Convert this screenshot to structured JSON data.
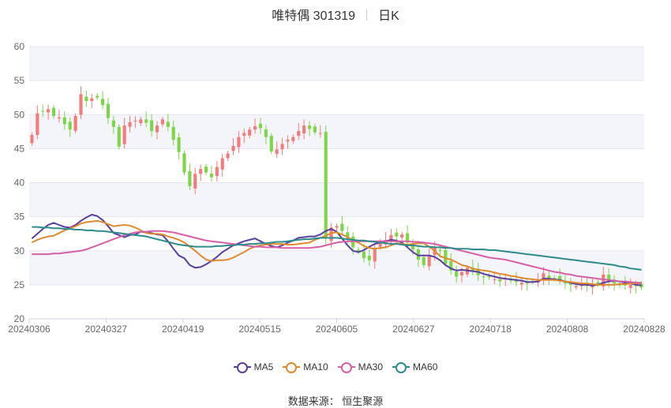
{
  "title": {
    "name": "唯特偶 301319",
    "period": "日K"
  },
  "source": "数据来源： 恒生聚源",
  "colors": {
    "up": "#f47b7b",
    "down": "#7cd646",
    "grid_band": "#f4f5fa",
    "grid_line": "#e4e7ef"
  },
  "chart_data": {
    "type": "candlestick",
    "ylim": [
      20,
      60
    ],
    "yticks": [
      20,
      25,
      30,
      35,
      40,
      45,
      50,
      55,
      60
    ],
    "xtick_labels": [
      "20240306",
      "20240327",
      "20240419",
      "20240515",
      "20240605",
      "20240627",
      "20240718",
      "20240808",
      "20240828"
    ],
    "xtick_index": [
      0,
      14,
      28,
      42,
      56,
      70,
      84,
      98,
      112
    ],
    "n_points": 113,
    "close": [
      47.0,
      50.2,
      50.5,
      50.8,
      49.8,
      49.6,
      48.6,
      47.8,
      49.8,
      53.0,
      52.0,
      52.4,
      52.5,
      51.4,
      49.5,
      48.2,
      45.3,
      48.4,
      48.9,
      49.1,
      49.3,
      48.8,
      47.6,
      48.4,
      49.3,
      48.2,
      46.3,
      44.5,
      41.5,
      39.5,
      41.3,
      42.0,
      41.5,
      40.8,
      42.3,
      43.6,
      44.3,
      45.4,
      46.7,
      47.3,
      47.8,
      48.3,
      48.0,
      46.7,
      44.6,
      44.9,
      45.7,
      46.3,
      46.7,
      47.6,
      48.4,
      47.9,
      47.4,
      47.3,
      31.8,
      33.4,
      33.6,
      32.9,
      31.9,
      30.5,
      29.9,
      28.9,
      28.6,
      30.4,
      31.3,
      31.6,
      32.3,
      32.1,
      32.4,
      31.2,
      30.2,
      28.7,
      27.9,
      29.2,
      30.5,
      30.1,
      28.1,
      27.1,
      26.2,
      26.9,
      27.5,
      27.0,
      26.4,
      26.1,
      26.1,
      25.8,
      25.5,
      25.9,
      25.6,
      25.4,
      25.3,
      25.2,
      25.5,
      25.6,
      26.7,
      26.0,
      25.9,
      25.7,
      25.2,
      25.0,
      24.8,
      24.9,
      24.8,
      25.2,
      25.1,
      26.5,
      25.4,
      25.2,
      25.0,
      24.9,
      25.0,
      24.8,
      24.6
    ],
    "series": [
      {
        "name": "MA5",
        "color": "#5b3f9e",
        "values": [
          31.8,
          32.5,
          33.2,
          33.8,
          34.1,
          33.8,
          33.5,
          33.4,
          33.8,
          34.4,
          34.9,
          35.3,
          35.1,
          34.5,
          33.6,
          32.6,
          32.3,
          32.0,
          32.3,
          32.4,
          32.8,
          32.7,
          32.6,
          32.4,
          32.3,
          31.4,
          30.3,
          29.3,
          28.9,
          27.9,
          27.5,
          27.6,
          28.0,
          28.5,
          29.1,
          29.8,
          30.3,
          30.8,
          31.1,
          31.4,
          31.6,
          31.8,
          31.4,
          31.0,
          30.7,
          30.5,
          30.8,
          31.2,
          31.5,
          31.9,
          32.0,
          32.1,
          32.1,
          32.4,
          32.9,
          33.2,
          32.8,
          31.8,
          30.8,
          30.0,
          29.8,
          30.1,
          30.6,
          31.0,
          31.2,
          31.4,
          31.6,
          31.5,
          31.2,
          30.5,
          29.8,
          29.3,
          29.3,
          29.3,
          29.1,
          28.6,
          27.9,
          27.4,
          27.1,
          27.2,
          27.1,
          27.0,
          26.9,
          26.6,
          26.4,
          26.2,
          26.0,
          25.9,
          25.8,
          25.7,
          25.6,
          25.4,
          25.4,
          25.5,
          25.9,
          25.9,
          25.8,
          25.7,
          25.5,
          25.3,
          25.1,
          25.0,
          25.0,
          24.9,
          25.0,
          25.3,
          25.5,
          25.6,
          25.5,
          25.3,
          25.2,
          25.0,
          24.9
        ]
      },
      {
        "name": "MA10",
        "color": "#e08a30",
        "values": [
          31.2,
          31.6,
          31.9,
          32.1,
          32.2,
          32.6,
          33.0,
          33.3,
          33.6,
          34.0,
          34.2,
          34.3,
          34.4,
          34.2,
          33.9,
          33.6,
          33.7,
          33.8,
          33.7,
          33.4,
          33.0,
          32.6,
          32.5,
          32.5,
          32.4,
          32.1,
          31.9,
          31.6,
          31.2,
          30.6,
          30.0,
          29.3,
          28.7,
          28.5,
          28.6,
          28.6,
          28.7,
          29.0,
          29.4,
          29.8,
          30.3,
          30.6,
          30.8,
          30.9,
          31.0,
          31.0,
          31.0,
          30.9,
          30.9,
          31.0,
          31.1,
          31.2,
          31.6,
          31.9,
          32.2,
          32.6,
          32.7,
          32.4,
          32.0,
          31.5,
          31.2,
          30.7,
          30.4,
          30.3,
          30.4,
          30.5,
          30.8,
          31.1,
          31.0,
          30.9,
          31.0,
          31.1,
          31.1,
          30.6,
          30.0,
          29.2,
          28.9,
          28.7,
          28.3,
          27.9,
          27.7,
          27.4,
          27.2,
          27.1,
          27.0,
          26.8,
          26.6,
          26.5,
          26.3,
          26.2,
          26.0,
          25.9,
          25.8,
          25.7,
          25.7,
          25.7,
          25.7,
          25.6,
          25.5,
          25.4,
          25.3,
          25.2,
          25.2,
          25.1,
          25.0,
          25.0,
          25.0,
          25.0,
          25.1,
          25.1,
          25.2,
          25.2,
          25.2
        ]
      },
      {
        "name": "MA30",
        "color": "#d65fa8",
        "values": [
          29.5,
          29.5,
          29.5,
          29.5,
          29.6,
          29.6,
          29.7,
          29.8,
          29.9,
          30.0,
          30.2,
          30.5,
          30.8,
          31.1,
          31.4,
          31.7,
          32.0,
          32.3,
          32.5,
          32.7,
          32.8,
          32.8,
          32.9,
          32.9,
          32.9,
          32.8,
          32.7,
          32.5,
          32.3,
          32.1,
          31.9,
          31.7,
          31.5,
          31.4,
          31.3,
          31.2,
          31.1,
          31.0,
          30.9,
          30.8,
          30.7,
          30.6,
          30.6,
          30.5,
          30.5,
          30.5,
          30.4,
          30.4,
          30.4,
          30.4,
          30.4,
          30.4,
          30.5,
          30.6,
          30.8,
          31.0,
          31.2,
          31.3,
          31.4,
          31.4,
          31.4,
          31.4,
          31.4,
          31.4,
          31.4,
          31.4,
          31.4,
          31.4,
          31.4,
          31.4,
          31.3,
          31.3,
          31.2,
          31.1,
          31.0,
          30.8,
          30.6,
          30.4,
          30.2,
          30.0,
          29.8,
          29.6,
          29.4,
          29.2,
          29.0,
          28.9,
          28.8,
          28.7,
          28.5,
          28.3,
          28.1,
          27.9,
          27.7,
          27.5,
          27.3,
          27.1,
          26.9,
          26.8,
          26.6,
          26.5,
          26.3,
          26.2,
          26.1,
          26.0,
          25.9,
          25.8,
          25.7,
          25.6,
          25.5,
          25.5,
          25.4,
          25.3,
          25.3
        ]
      },
      {
        "name": "MA60",
        "color": "#2e8b8b",
        "values": [
          33.5,
          33.5,
          33.4,
          33.4,
          33.3,
          33.3,
          33.2,
          33.2,
          33.1,
          33.1,
          33.0,
          33.0,
          32.9,
          32.9,
          32.8,
          32.7,
          32.6,
          32.5,
          32.4,
          32.3,
          32.2,
          32.1,
          31.9,
          31.7,
          31.5,
          31.3,
          31.1,
          30.9,
          30.8,
          30.7,
          30.6,
          30.6,
          30.6,
          30.6,
          30.7,
          30.7,
          30.8,
          30.8,
          30.9,
          30.9,
          31.0,
          31.0,
          31.1,
          31.1,
          31.2,
          31.3,
          31.3,
          31.4,
          31.5,
          31.6,
          31.7,
          31.7,
          31.8,
          31.9,
          31.9,
          31.9,
          31.9,
          31.8,
          31.7,
          31.6,
          31.5,
          31.5,
          31.4,
          31.3,
          31.2,
          31.1,
          31.0,
          31.0,
          30.9,
          30.8,
          30.8,
          30.7,
          30.6,
          30.6,
          30.5,
          30.5,
          30.4,
          30.4,
          30.3,
          30.3,
          30.3,
          30.2,
          30.2,
          30.2,
          30.1,
          30.1,
          30.0,
          29.9,
          29.8,
          29.7,
          29.6,
          29.5,
          29.4,
          29.3,
          29.2,
          29.1,
          29.0,
          28.9,
          28.8,
          28.7,
          28.6,
          28.5,
          28.4,
          28.3,
          28.2,
          28.1,
          28.0,
          27.9,
          27.7,
          27.6,
          27.4,
          27.3,
          27.2
        ]
      }
    ]
  }
}
